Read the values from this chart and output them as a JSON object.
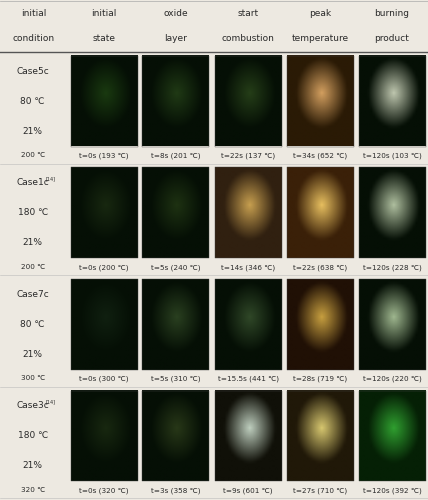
{
  "header_row1": [
    "initial",
    "initial",
    "oxide",
    "start",
    "peak",
    "burning"
  ],
  "header_row2": [
    "condition",
    "state",
    "layer",
    "combustion",
    "temperature",
    "product"
  ],
  "cases": [
    {
      "label_lines": [
        "Case5c",
        "80 ℃",
        "21%"
      ],
      "bottom_label": "200 ℃",
      "captions": [
        "t=0s (193 ℃)",
        "t=8s (201 ℃)",
        "t=22s (137 ℃)",
        "t=34s (652 ℃)",
        "t=120s (103 ℃)"
      ],
      "cell_colors": [
        [
          "#050f05",
          "#1a3a10",
          "#1a3a10",
          "#050f05"
        ],
        [
          "#050f05",
          "#203a15",
          "#203a15",
          "#050f05"
        ],
        [
          "#050f05",
          "#253e18",
          "#253e18",
          "#050f05"
        ],
        [
          "#2a1a05",
          "#d4a060",
          "#d4a060",
          "#1a0f02"
        ],
        [
          "#050f05",
          "#c0c8b0",
          "#c0c8b0",
          "#050f05"
        ]
      ]
    },
    {
      "label_lines": [
        "Case1c[14]",
        "180 ℃",
        "21%"
      ],
      "bottom_label": "200 ℃",
      "captions": [
        "t=0s (200 ℃)",
        "t=5s (240 ℃)",
        "t=14s (346 ℃)",
        "t=22s (638 ℃)",
        "t=120s (228 ℃)"
      ],
      "cell_colors": [
        [
          "#050f05",
          "#182810",
          "#182810",
          "#050f05"
        ],
        [
          "#050f05",
          "#1e3212",
          "#1e3212",
          "#050f05"
        ],
        [
          "#302010",
          "#c8a050",
          "#c8a050",
          "#100a02"
        ],
        [
          "#3a2008",
          "#e8c060",
          "#e8c060",
          "#201005"
        ],
        [
          "#050f05",
          "#b0c0a0",
          "#b0c0a0",
          "#050f05"
        ]
      ]
    },
    {
      "label_lines": [
        "Case7c",
        "80 ℃",
        "21%"
      ],
      "bottom_label": "300 ℃",
      "captions": [
        "t=0s (300 ℃)",
        "t=5s (310 ℃)",
        "t=15.5s (441 ℃)",
        "t=28s (719 ℃)",
        "t=120s (220 ℃)"
      ],
      "cell_colors": [
        [
          "#050f05",
          "#102010",
          "#102010",
          "#050f05"
        ],
        [
          "#050f05",
          "#2a4020",
          "#2a4020",
          "#050f05"
        ],
        [
          "#050f05",
          "#304828",
          "#304828",
          "#050f05"
        ],
        [
          "#201005",
          "#c8a040",
          "#c8a040",
          "#100800"
        ],
        [
          "#050f05",
          "#a0b890",
          "#a0b890",
          "#050f05"
        ]
      ]
    },
    {
      "label_lines": [
        "Case3c[14]",
        "180 ℃",
        "21%"
      ],
      "bottom_label": "320 ℃",
      "captions": [
        "t=0s (320 ℃)",
        "t=3s (358 ℃)",
        "t=9s (601 ℃)",
        "t=27s (710 ℃)",
        "t=120s (392 ℃)"
      ],
      "cell_colors": [
        [
          "#050f05",
          "#182810",
          "#182810",
          "#050f05"
        ],
        [
          "#050f05",
          "#283818",
          "#283818",
          "#050f05"
        ],
        [
          "#101008",
          "#c0d0c0",
          "#c0d0c0",
          "#080808"
        ],
        [
          "#201808",
          "#d8c870",
          "#d8c870",
          "#181002"
        ],
        [
          "#052005",
          "#30a030",
          "#30a030",
          "#031503"
        ]
      ]
    }
  ],
  "bg_color": "#ede9e1",
  "text_color": "#2a2a2a",
  "label_superscript": {
    "Case1c[14]": "Case1c",
    "Case3c[14]": "Case3c"
  },
  "superscript_text": "[14]"
}
